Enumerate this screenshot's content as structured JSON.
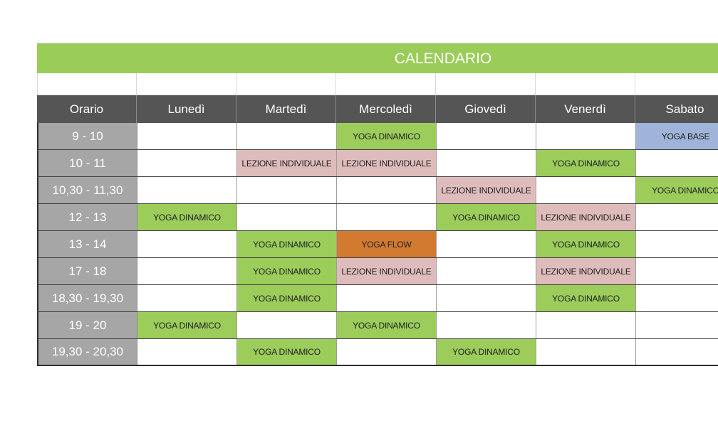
{
  "title": "CALENDARIO",
  "headers": [
    "Orario",
    "Lunedì",
    "Martedì",
    "Mercoledì",
    "Giovedì",
    "Venerdì",
    "Sabato"
  ],
  "colors": {
    "title_green": "#9acd57",
    "header_dark": "#555555",
    "time_gray": "#a6a6a6",
    "yoga_dinamico": "#9ccc5a",
    "lezione_individuale": "#dfbcbc",
    "yoga_flow": "#d27a30",
    "yoga_base": "#9fb4d8"
  },
  "rows": [
    {
      "time": "9 - 10",
      "cells": [
        "",
        "",
        "YOGA DINAMICO",
        "",
        "",
        "YOGA BASE"
      ]
    },
    {
      "time": "10 - 11",
      "cells": [
        "",
        "LEZIONE INDIVIDUALE",
        "LEZIONE INDIVIDUALE",
        "",
        "YOGA DINAMICO",
        ""
      ]
    },
    {
      "time": "10,30 - 11,30",
      "cells": [
        "",
        "",
        "",
        "LEZIONE INDIVIDUALE",
        "",
        "YOGA DINAMICO"
      ]
    },
    {
      "time": "12 - 13",
      "cells": [
        "YOGA DINAMICO",
        "",
        "",
        "YOGA DINAMICO",
        "LEZIONE INDIVIDUALE",
        ""
      ]
    },
    {
      "time": "13 - 14",
      "cells": [
        "",
        "YOGA DINAMICO",
        "YOGA FLOW",
        "",
        "YOGA DINAMICO",
        ""
      ]
    },
    {
      "time": "17 - 18",
      "cells": [
        "",
        "YOGA DINAMICO",
        "LEZIONE INDIVIDUALE",
        "",
        "LEZIONE INDIVIDUALE",
        ""
      ]
    },
    {
      "time": "18,30 - 19,30",
      "cells": [
        "",
        "YOGA DINAMICO",
        "",
        "",
        "YOGA DINAMICO",
        ""
      ]
    },
    {
      "time": "19 - 20",
      "cells": [
        "YOGA DINAMICO",
        "",
        "YOGA DINAMICO",
        "",
        "",
        ""
      ]
    },
    {
      "time": "19,30 - 20,30",
      "cells": [
        "",
        "YOGA DINAMICO",
        "",
        "YOGA DINAMICO",
        "",
        ""
      ]
    }
  ]
}
